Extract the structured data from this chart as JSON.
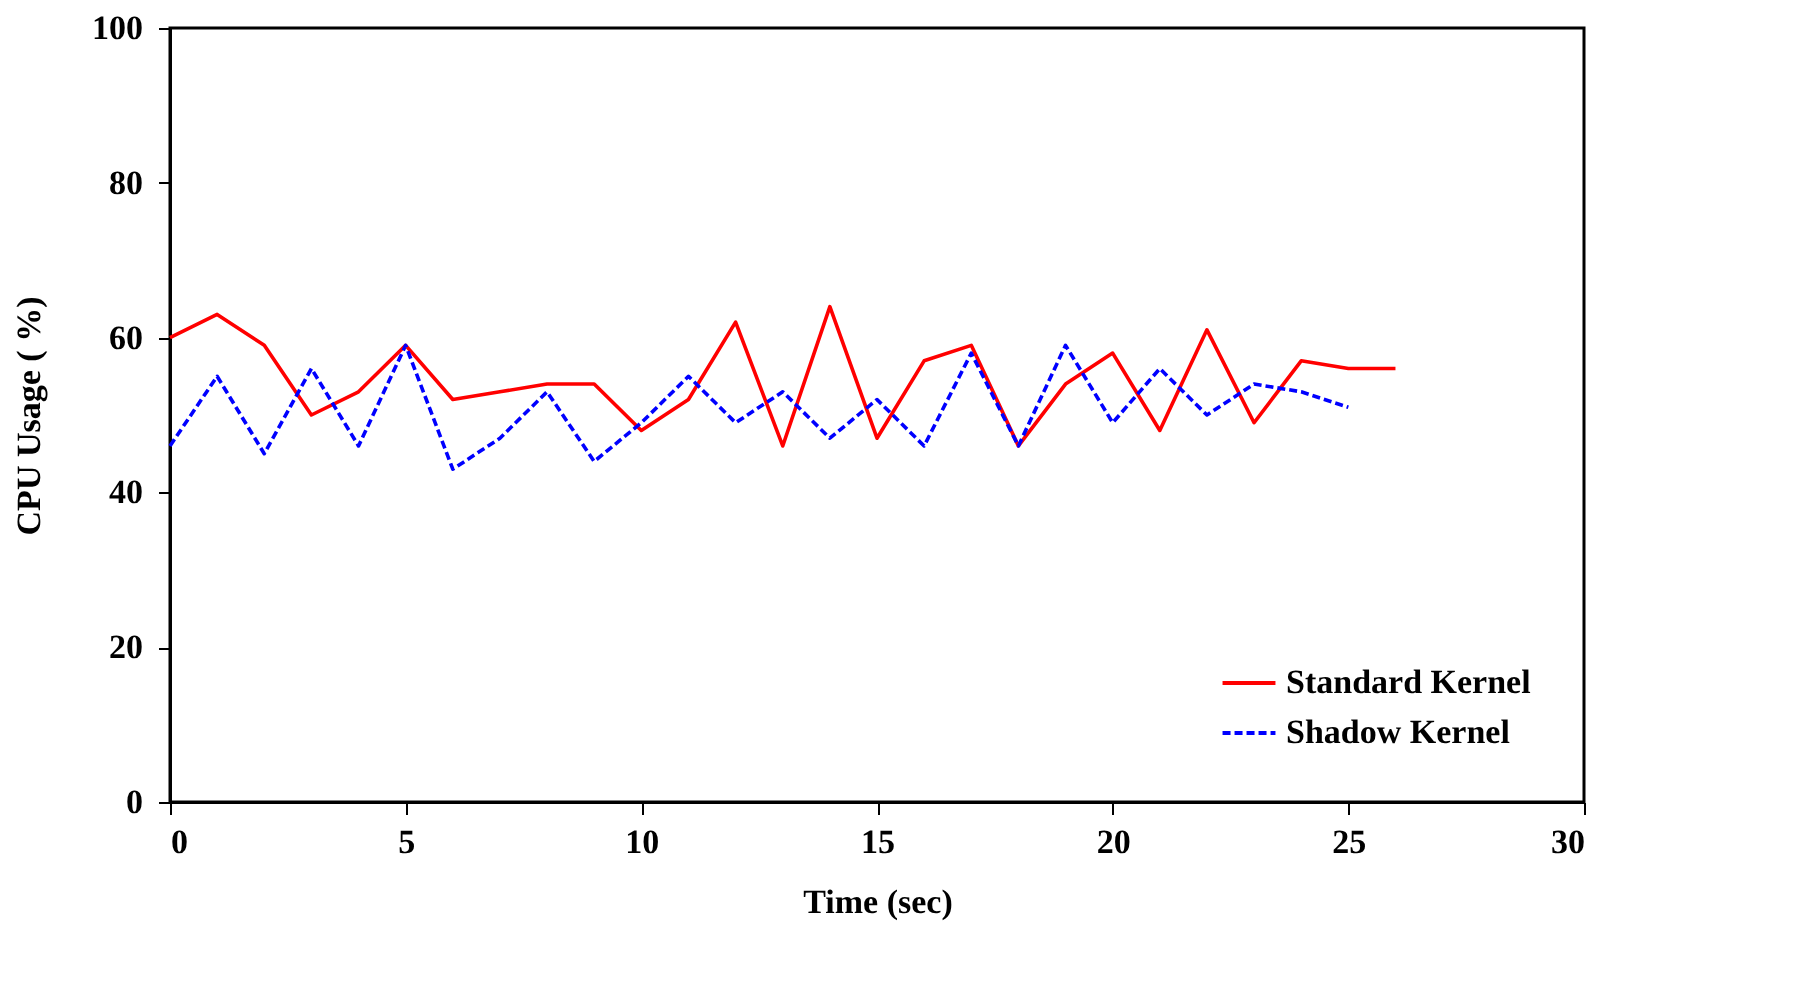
{
  "chart_data": {
    "type": "line",
    "xlabel": "Time (sec)",
    "ylabel": "CPU Usage ( %)",
    "xlim": [
      0,
      30
    ],
    "xticks": [
      0,
      5,
      10,
      15,
      20,
      25,
      30
    ],
    "ylim": [
      0,
      100
    ],
    "yticks": [
      0,
      20,
      40,
      60,
      80,
      100
    ],
    "grid": false,
    "legend": "bottom right",
    "marker": "none",
    "series": [
      {
        "name": "Standard Kernel",
        "color": "#ff0000",
        "line_style": "solid",
        "x": [
          0,
          1,
          2,
          3,
          4,
          5,
          6,
          7,
          8,
          9,
          10,
          11,
          12,
          13,
          14,
          15,
          16,
          17,
          18,
          19,
          20,
          21,
          22,
          23,
          24,
          25,
          26
        ],
        "values": [
          60,
          63,
          59,
          50,
          53,
          59,
          52,
          53,
          54,
          54,
          48,
          52,
          62,
          46,
          64,
          47,
          57,
          59,
          46,
          54,
          58,
          48,
          61,
          49,
          57,
          56,
          56
        ]
      },
      {
        "name": "Shadow Kernel",
        "color": "#0000ff",
        "line_style": "dashed",
        "x": [
          0,
          1,
          2,
          3,
          4,
          5,
          6,
          7,
          8,
          9,
          10,
          11,
          12,
          13,
          14,
          15,
          16,
          17,
          18,
          19,
          20,
          21,
          22,
          23,
          24,
          25
        ],
        "values": [
          46,
          55,
          45,
          56,
          46,
          59,
          43,
          47,
          53,
          44,
          49,
          55,
          49,
          53,
          47,
          52,
          46,
          58,
          46,
          59,
          49,
          56,
          50,
          54,
          53,
          51
        ]
      }
    ]
  }
}
